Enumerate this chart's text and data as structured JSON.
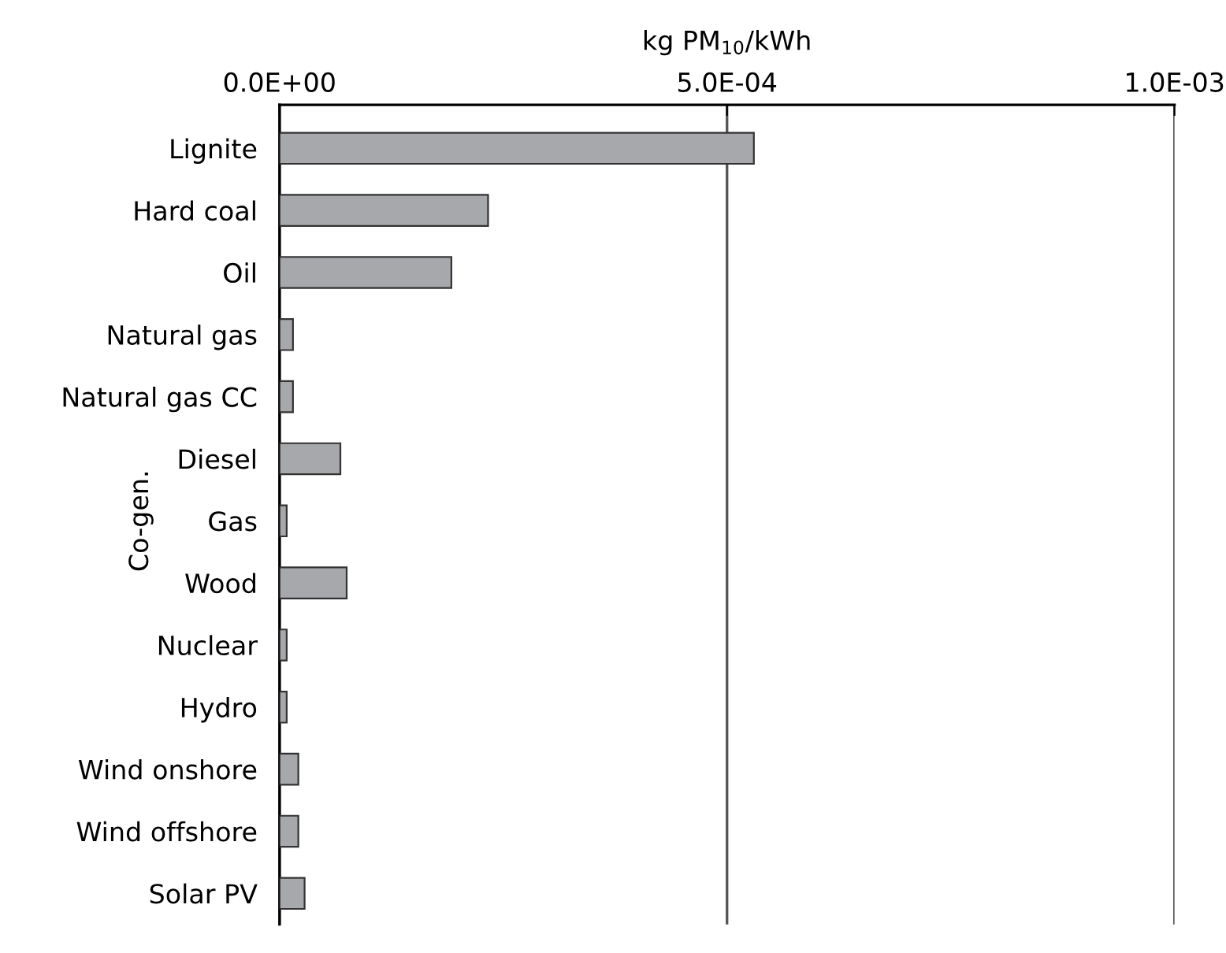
{
  "chart_data": {
    "type": "bar",
    "orientation": "horizontal",
    "xlabel": "kg PM$_{10}$/kWh",
    "categories": [
      "Lignite",
      "Hard coal",
      "Oil",
      "Natural gas",
      "Natural gas CC",
      "Diesel",
      "Gas",
      "Wood",
      "Nuclear",
      "Hydro",
      "Wind onshore",
      "Wind offshore",
      "Solar PV"
    ],
    "values": [
      0.00053,
      0.000233,
      0.000192,
      1.5e-05,
      1.5e-05,
      6.8e-05,
      8e-06,
      7.5e-05,
      8e-06,
      8e-06,
      2.1e-05,
      2.1e-05,
      2.8e-05
    ],
    "color": "#a7a8ab",
    "xlim": [
      0,
      0.001
    ],
    "xticks": [
      {
        "value": 0,
        "label": "0.0E+00"
      },
      {
        "value": 0.0005,
        "label": "5.0E-04"
      },
      {
        "value": 0.001,
        "label": "1.0E-03"
      }
    ],
    "grid": "x",
    "annotations": [
      "Co-gen."
    ]
  }
}
